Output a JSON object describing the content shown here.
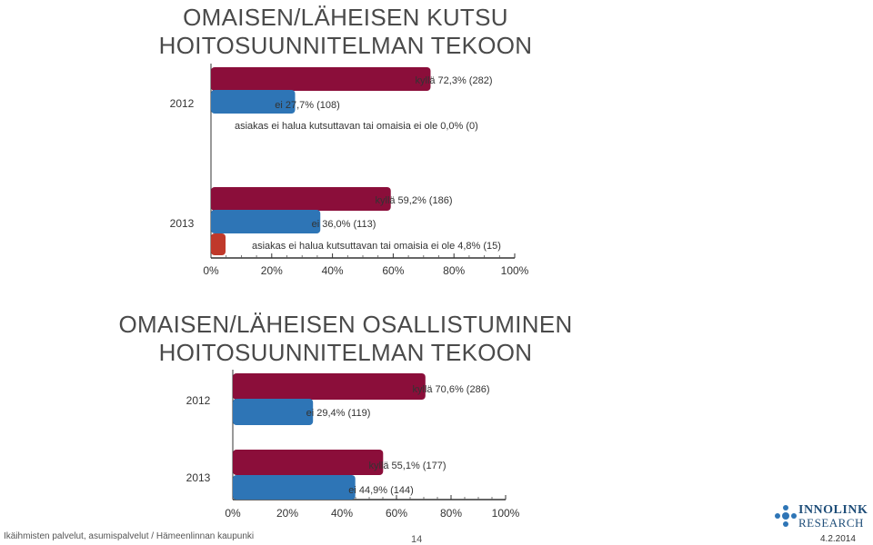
{
  "chart1": {
    "title_line1": "OMAISEN/LÄHEISEN KUTSU",
    "title_line2": "HOITOSUUNNITELMAN TEKOON"
  },
  "chart2": {
    "title_line1": "OMAISEN/LÄHEISEN OSALLISTUMINEN",
    "title_line2": "HOITOSUUNNITELMAN TEKOON"
  },
  "chart_data": [
    {
      "type": "bar",
      "orientation": "horizontal",
      "title": "OMAISEN/LÄHEISEN KUTSU HOITOSUUNNITELMAN TEKOON",
      "x_ticks": [
        "0%",
        "20%",
        "40%",
        "60%",
        "80%",
        "100%"
      ],
      "xlim": [
        0,
        100
      ],
      "groups": [
        {
          "label": "2012",
          "bars": [
            {
              "value": 72.3,
              "label": "kyllä 72,3% (282)",
              "color": "#8b0e3a"
            },
            {
              "value": 27.7,
              "label": "ei 27,7% (108)",
              "color": "#2e75b6"
            },
            {
              "value": 0.0,
              "label": "asiakas ei halua kutsuttavan tai omaisia ei ole 0,0% (0)",
              "color": "#c0392b"
            }
          ]
        },
        {
          "label": "2013",
          "bars": [
            {
              "value": 59.2,
              "label": "kyllä 59,2% (186)",
              "color": "#8b0e3a"
            },
            {
              "value": 36.0,
              "label": "ei 36,0% (113)",
              "color": "#2e75b6"
            },
            {
              "value": 4.8,
              "label": "asiakas ei halua kutsuttavan tai omaisia ei ole 4,8% (15)",
              "color": "#c0392b"
            }
          ]
        }
      ]
    },
    {
      "type": "bar",
      "orientation": "horizontal",
      "title": "OMAISEN/LÄHEISEN OSALLISTUMINEN HOITOSUUNNITELMAN TEKOON",
      "x_ticks": [
        "0%",
        "20%",
        "40%",
        "60%",
        "80%",
        "100%"
      ],
      "xlim": [
        0,
        100
      ],
      "groups": [
        {
          "label": "2012",
          "bars": [
            {
              "value": 70.6,
              "label": "kyllä 70,6% (286)",
              "color": "#8b0e3a"
            },
            {
              "value": 29.4,
              "label": "ei 29,4% (119)",
              "color": "#2e75b6"
            }
          ]
        },
        {
          "label": "2013",
          "bars": [
            {
              "value": 55.1,
              "label": "kyllä 55,1% (177)",
              "color": "#8b0e3a"
            },
            {
              "value": 44.9,
              "label": "ei 44,9% (144)",
              "color": "#2e75b6"
            }
          ]
        }
      ]
    }
  ],
  "footer": {
    "left_text": "Ikäihmisten palvelut, asumispalvelut / Hämeenlinnan kaupunki",
    "page_number": "14",
    "date": "4.2.2014",
    "logo_line1": "INNOLINK",
    "logo_line2": "RESEARCH"
  }
}
